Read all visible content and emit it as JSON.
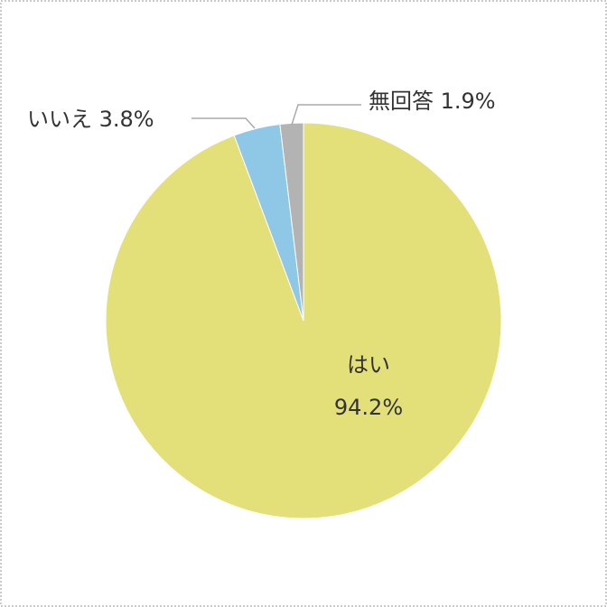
{
  "chart_data": {
    "type": "pie",
    "categories": [
      "はい",
      "いいえ",
      "無回答"
    ],
    "values": [
      94.2,
      3.8,
      1.9
    ],
    "value_labels": [
      "94.2%",
      "3.8%",
      "1.9%"
    ],
    "colors": [
      "#e3e07a",
      "#8ec8e6",
      "#b3b3b3"
    ]
  }
}
